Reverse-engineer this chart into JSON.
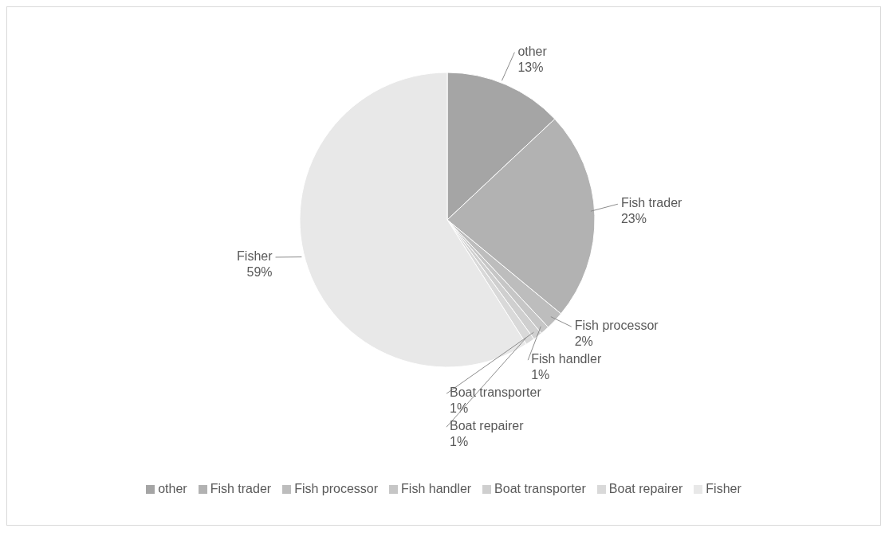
{
  "chart_data": {
    "type": "pie",
    "categories": [
      "other",
      "Fish trader",
      "Fish processor",
      "Fish handler",
      "Boat transporter",
      "Boat repairer",
      "Fisher"
    ],
    "values": [
      13,
      23,
      2,
      1,
      1,
      1,
      59
    ],
    "value_labels": [
      "13%",
      "23%",
      "2%",
      "1%",
      "1%",
      "1%",
      "59%"
    ],
    "colors": [
      "#a5a5a5",
      "#b2b2b2",
      "#bdbdbd",
      "#c6c6c6",
      "#cfcfcf",
      "#d9d9d9",
      "#e8e8e8"
    ],
    "legend": "bottom"
  }
}
